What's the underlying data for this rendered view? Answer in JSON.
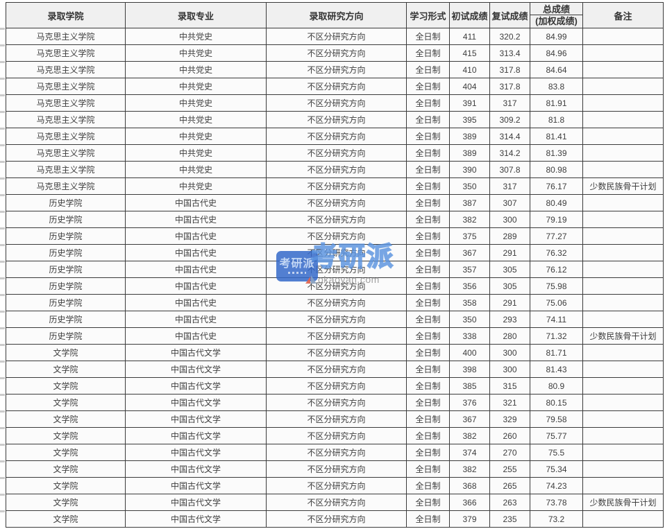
{
  "watermark": {
    "badge_text": "考研派",
    "brand_text": "考研派",
    "domain": "okaoyan.com"
  },
  "table": {
    "col_keys": [
      "college",
      "major",
      "direction",
      "study_form",
      "initial_score",
      "retest_score",
      "total_score",
      "remark"
    ],
    "headers": {
      "college": "录取学院",
      "major": "录取专业",
      "direction": "录取研究方向",
      "study_form": "学习形式",
      "initial_score": "初试成绩",
      "retest_score": "复试成绩",
      "total_score_line1": "总成绩",
      "total_score_line2": "(加权成绩)",
      "remark": "备注"
    },
    "rows": [
      [
        "马克思主义学院",
        "中共党史",
        "不区分研究方向",
        "全日制",
        "411",
        "320.2",
        "84.99",
        ""
      ],
      [
        "马克思主义学院",
        "中共党史",
        "不区分研究方向",
        "全日制",
        "415",
        "313.4",
        "84.96",
        ""
      ],
      [
        "马克思主义学院",
        "中共党史",
        "不区分研究方向",
        "全日制",
        "410",
        "317.8",
        "84.64",
        ""
      ],
      [
        "马克思主义学院",
        "中共党史",
        "不区分研究方向",
        "全日制",
        "404",
        "317.8",
        "83.8",
        ""
      ],
      [
        "马克思主义学院",
        "中共党史",
        "不区分研究方向",
        "全日制",
        "391",
        "317",
        "81.91",
        ""
      ],
      [
        "马克思主义学院",
        "中共党史",
        "不区分研究方向",
        "全日制",
        "395",
        "309.2",
        "81.8",
        ""
      ],
      [
        "马克思主义学院",
        "中共党史",
        "不区分研究方向",
        "全日制",
        "389",
        "314.4",
        "81.41",
        ""
      ],
      [
        "马克思主义学院",
        "中共党史",
        "不区分研究方向",
        "全日制",
        "389",
        "314.2",
        "81.39",
        ""
      ],
      [
        "马克思主义学院",
        "中共党史",
        "不区分研究方向",
        "全日制",
        "390",
        "307.8",
        "80.98",
        ""
      ],
      [
        "马克思主义学院",
        "中共党史",
        "不区分研究方向",
        "全日制",
        "350",
        "317",
        "76.17",
        "少数民族骨干计划"
      ],
      [
        "历史学院",
        "中国古代史",
        "不区分研究方向",
        "全日制",
        "387",
        "307",
        "80.49",
        ""
      ],
      [
        "历史学院",
        "中国古代史",
        "不区分研究方向",
        "全日制",
        "382",
        "300",
        "79.19",
        ""
      ],
      [
        "历史学院",
        "中国古代史",
        "不区分研究方向",
        "全日制",
        "375",
        "289",
        "77.27",
        ""
      ],
      [
        "历史学院",
        "中国古代史",
        "不区分研究方向",
        "全日制",
        "367",
        "291",
        "76.32",
        ""
      ],
      [
        "历史学院",
        "中国古代史",
        "不区分研究方向",
        "全日制",
        "357",
        "305",
        "76.12",
        ""
      ],
      [
        "历史学院",
        "中国古代史",
        "不区分研究方向",
        "全日制",
        "356",
        "305",
        "75.98",
        ""
      ],
      [
        "历史学院",
        "中国古代史",
        "不区分研究方向",
        "全日制",
        "358",
        "291",
        "75.06",
        ""
      ],
      [
        "历史学院",
        "中国古代史",
        "不区分研究方向",
        "全日制",
        "350",
        "293",
        "74.11",
        ""
      ],
      [
        "历史学院",
        "中国古代史",
        "不区分研究方向",
        "全日制",
        "338",
        "280",
        "71.32",
        "少数民族骨干计划"
      ],
      [
        "文学院",
        "中国古代文学",
        "不区分研究方向",
        "全日制",
        "400",
        "300",
        "81.71",
        ""
      ],
      [
        "文学院",
        "中国古代文学",
        "不区分研究方向",
        "全日制",
        "398",
        "300",
        "81.43",
        ""
      ],
      [
        "文学院",
        "中国古代文学",
        "不区分研究方向",
        "全日制",
        "385",
        "315",
        "80.9",
        ""
      ],
      [
        "文学院",
        "中国古代文学",
        "不区分研究方向",
        "全日制",
        "376",
        "321",
        "80.15",
        ""
      ],
      [
        "文学院",
        "中国古代文学",
        "不区分研究方向",
        "全日制",
        "367",
        "329",
        "79.58",
        ""
      ],
      [
        "文学院",
        "中国古代文学",
        "不区分研究方向",
        "全日制",
        "382",
        "260",
        "75.77",
        ""
      ],
      [
        "文学院",
        "中国古代文学",
        "不区分研究方向",
        "全日制",
        "374",
        "270",
        "75.5",
        ""
      ],
      [
        "文学院",
        "中国古代文学",
        "不区分研究方向",
        "全日制",
        "382",
        "255",
        "75.34",
        ""
      ],
      [
        "文学院",
        "中国古代文学",
        "不区分研究方向",
        "全日制",
        "368",
        "265",
        "74.23",
        ""
      ],
      [
        "文学院",
        "中国古代文学",
        "不区分研究方向",
        "全日制",
        "366",
        "263",
        "73.78",
        "少数民族骨干计划"
      ],
      [
        "文学院",
        "中国古代文学",
        "不区分研究方向",
        "全日制",
        "379",
        "235",
        "73.2",
        ""
      ]
    ]
  }
}
